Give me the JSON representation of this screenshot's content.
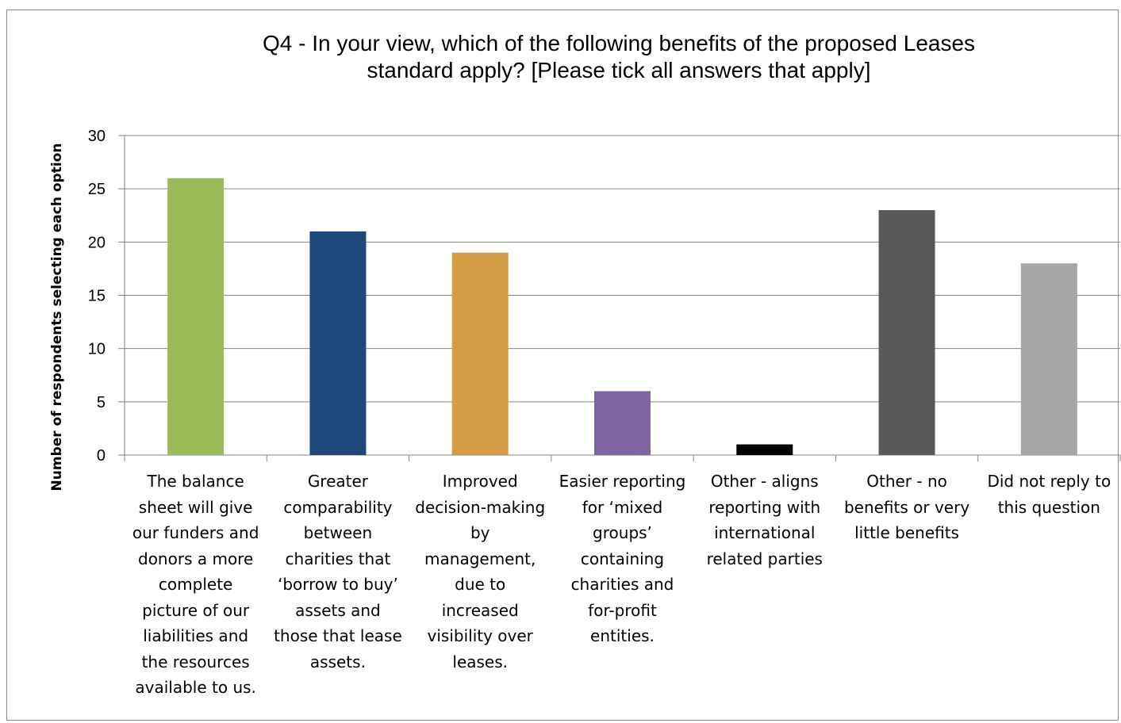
{
  "chart_data": {
    "type": "bar",
    "title_lines": [
      "Q4 - In your view, which of the following benefits of the proposed Leases",
      "standard apply? [Please tick all answers that apply]"
    ],
    "ylabel": "Number of respondents selecting each option",
    "xlabel": "",
    "ylim": [
      0,
      30
    ],
    "yticks": [
      "0",
      "5",
      "10",
      "15",
      "20",
      "25",
      "30"
    ],
    "grid": true,
    "categories": [
      [
        "The balance",
        "sheet will give",
        "our funders and",
        "donors a more",
        "complete",
        "picture of our",
        "liabilities and",
        "the resources",
        "available to us."
      ],
      [
        "Greater",
        "comparability",
        "between",
        "charities that",
        "‘borrow to buy’",
        "assets and",
        "those that lease",
        "assets."
      ],
      [
        "Improved",
        "decision-making",
        "by",
        "management,",
        "due to",
        "increased",
        "visibility over",
        "leases."
      ],
      [
        "Easier reporting",
        "for ‘mixed",
        "groups’",
        "containing",
        "charities and",
        "for-profit",
        "entities."
      ],
      [
        "Other - aligns",
        "reporting with",
        "international",
        "related parties"
      ],
      [
        "Other - no",
        "benefits or very",
        "little benefits"
      ],
      [
        "Did not reply to",
        "this question"
      ]
    ],
    "values": [
      26,
      21,
      19,
      6,
      1,
      23,
      18
    ],
    "colors": [
      "#9bbb59",
      "#1f497d",
      "#d49d45",
      "#8064a2",
      "#000000",
      "#595959",
      "#a6a6a6"
    ]
  }
}
